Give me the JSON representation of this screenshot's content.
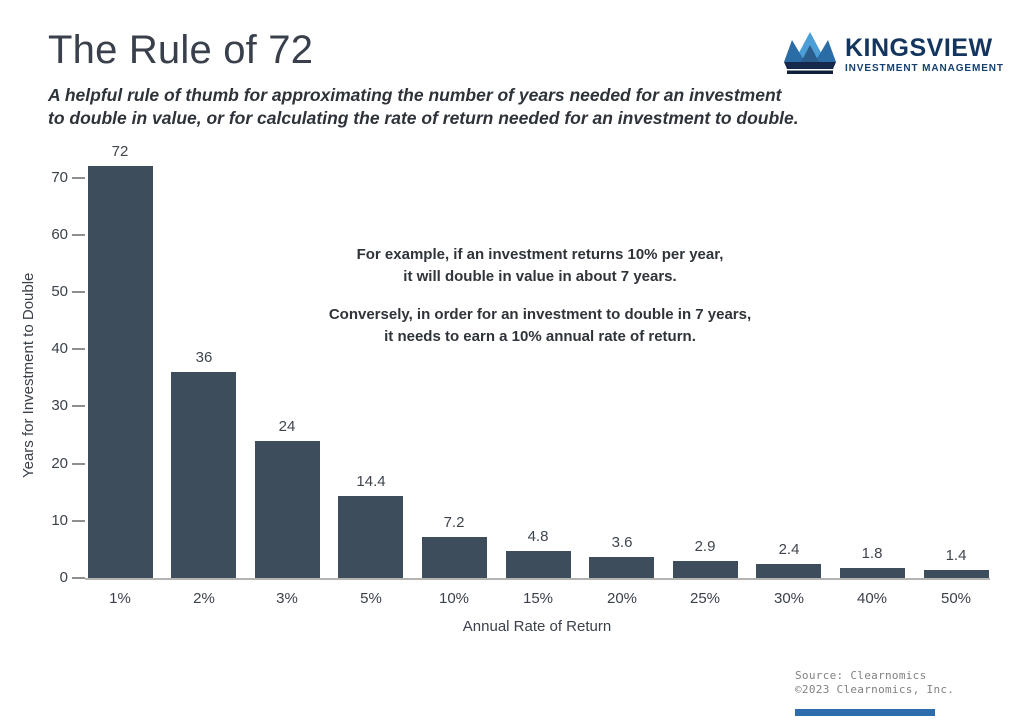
{
  "page": {
    "title": "The Rule of 72",
    "subtitle_line1": "A helpful rule of thumb for approximating the number of years needed for an investment",
    "subtitle_line2": "to double in value, or for calculating the rate of return needed for an investment to double."
  },
  "logo": {
    "name": "KINGSVIEW",
    "tagline": "INVESTMENT MANAGEMENT",
    "navy": "#14355e",
    "crown_light_blue": "#4c9ed6",
    "crown_mid_blue": "#2a6da6",
    "crown_dark_navy": "#16294c"
  },
  "annotation": {
    "line1": "For example, if an investment returns 10% per year,",
    "line2": "it will double in value in about 7 years.",
    "line3": "Conversely, in order for an investment to double in 7 years,",
    "line4": "it needs to earn a 10% annual rate of return."
  },
  "source": {
    "line1": "Source: Clearnomics",
    "line2": "©2023 Clearnomics, Inc."
  },
  "chart_data": {
    "type": "bar",
    "title": "The Rule of 72",
    "categories": [
      "1%",
      "2%",
      "3%",
      "5%",
      "10%",
      "15%",
      "20%",
      "25%",
      "30%",
      "40%",
      "50%"
    ],
    "values": [
      72,
      36,
      24,
      14.4,
      7.2,
      4.8,
      3.6,
      2.9,
      2.4,
      1.8,
      1.4
    ],
    "value_labels": [
      "72",
      "36",
      "24",
      "14.4",
      "7.2",
      "4.8",
      "3.6",
      "2.9",
      "2.4",
      "1.8",
      "1.4"
    ],
    "xlabel": "Annual Rate of Return",
    "ylabel": "Years for Investment to Double",
    "ylim": [
      0,
      75
    ],
    "yticks": [
      0,
      10,
      20,
      30,
      40,
      50,
      60,
      70
    ],
    "bar_color": "#3e4d5c",
    "grid": false,
    "legend": "none",
    "data_labels": true
  }
}
